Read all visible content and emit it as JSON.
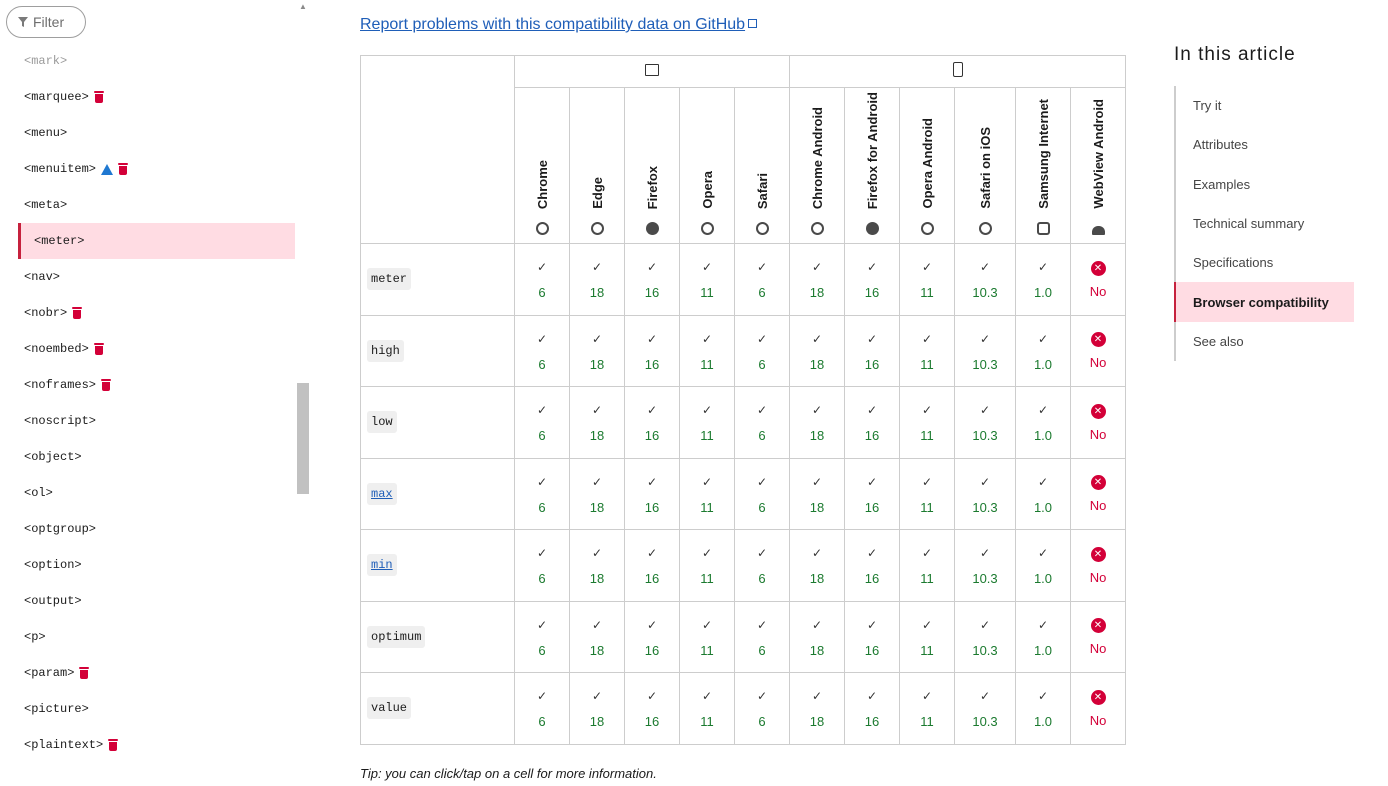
{
  "sidebar": {
    "filter_label": "Filter",
    "items": [
      {
        "label": "<mark>",
        "faded": true,
        "icons": []
      },
      {
        "label": "<marquee>",
        "icons": [
          "trash"
        ]
      },
      {
        "label": "<menu>",
        "icons": []
      },
      {
        "label": "<menuitem>",
        "icons": [
          "warning",
          "trash"
        ]
      },
      {
        "label": "<meta>",
        "icons": []
      },
      {
        "label": "<meter>",
        "active": true,
        "icons": []
      },
      {
        "label": "<nav>",
        "icons": []
      },
      {
        "label": "<nobr>",
        "icons": [
          "trash"
        ]
      },
      {
        "label": "<noembed>",
        "icons": [
          "trash"
        ]
      },
      {
        "label": "<noframes>",
        "icons": [
          "trash"
        ]
      },
      {
        "label": "<noscript>",
        "icons": []
      },
      {
        "label": "<object>",
        "icons": []
      },
      {
        "label": "<ol>",
        "icons": []
      },
      {
        "label": "<optgroup>",
        "icons": []
      },
      {
        "label": "<option>",
        "icons": []
      },
      {
        "label": "<output>",
        "icons": []
      },
      {
        "label": "<p>",
        "icons": []
      },
      {
        "label": "<param>",
        "icons": [
          "trash"
        ]
      },
      {
        "label": "<picture>",
        "icons": []
      },
      {
        "label": "<plaintext>",
        "icons": [
          "trash"
        ]
      }
    ]
  },
  "main": {
    "report_link": "Report problems with this compatibility data on GitHub",
    "tip": "Tip: you can click/tap on a cell for more information."
  },
  "compat": {
    "platforms": [
      {
        "name": "desktop-icon",
        "span": 5
      },
      {
        "name": "mobile-icon",
        "span": 6
      }
    ],
    "browsers": [
      {
        "name": "Chrome",
        "icon": "chrome-icon"
      },
      {
        "name": "Edge",
        "icon": "edge-icon"
      },
      {
        "name": "Firefox",
        "icon": "firefox-icon"
      },
      {
        "name": "Opera",
        "icon": "opera-icon"
      },
      {
        "name": "Safari",
        "icon": "safari-icon"
      },
      {
        "name": "Chrome Android",
        "icon": "chrome-icon"
      },
      {
        "name": "Firefox for Android",
        "icon": "firefox-icon"
      },
      {
        "name": "Opera Android",
        "icon": "opera-icon"
      },
      {
        "name": "Safari on iOS",
        "icon": "safari-icon"
      },
      {
        "name": "Samsung Internet",
        "icon": "samsung-icon"
      },
      {
        "name": "WebView Android",
        "icon": "android-icon"
      }
    ],
    "rows": [
      {
        "feature": "meter",
        "link": false,
        "versions": [
          "6",
          "18",
          "16",
          "11",
          "6",
          "18",
          "16",
          "11",
          "10.3",
          "1.0",
          "No"
        ]
      },
      {
        "feature": "high",
        "link": false,
        "versions": [
          "6",
          "18",
          "16",
          "11",
          "6",
          "18",
          "16",
          "11",
          "10.3",
          "1.0",
          "No"
        ]
      },
      {
        "feature": "low",
        "link": false,
        "versions": [
          "6",
          "18",
          "16",
          "11",
          "6",
          "18",
          "16",
          "11",
          "10.3",
          "1.0",
          "No"
        ]
      },
      {
        "feature": "max",
        "link": true,
        "versions": [
          "6",
          "18",
          "16",
          "11",
          "6",
          "18",
          "16",
          "11",
          "10.3",
          "1.0",
          "No"
        ]
      },
      {
        "feature": "min",
        "link": true,
        "versions": [
          "6",
          "18",
          "16",
          "11",
          "6",
          "18",
          "16",
          "11",
          "10.3",
          "1.0",
          "No"
        ]
      },
      {
        "feature": "optimum",
        "link": false,
        "versions": [
          "6",
          "18",
          "16",
          "11",
          "6",
          "18",
          "16",
          "11",
          "10.3",
          "1.0",
          "No"
        ]
      },
      {
        "feature": "value",
        "link": false,
        "versions": [
          "6",
          "18",
          "16",
          "11",
          "6",
          "18",
          "16",
          "11",
          "10.3",
          "1.0",
          "No"
        ]
      }
    ],
    "colors": {
      "supported": "#1b7a2f",
      "unsupported": "#d30038",
      "highlight": "#ffdce3",
      "accent": "#c6213d"
    }
  },
  "toc": {
    "title": "In this article",
    "items": [
      {
        "label": "Try it"
      },
      {
        "label": "Attributes"
      },
      {
        "label": "Examples"
      },
      {
        "label": "Technical summary"
      },
      {
        "label": "Specifications"
      },
      {
        "label": "Browser compatibility",
        "active": true
      },
      {
        "label": "See also"
      }
    ]
  }
}
